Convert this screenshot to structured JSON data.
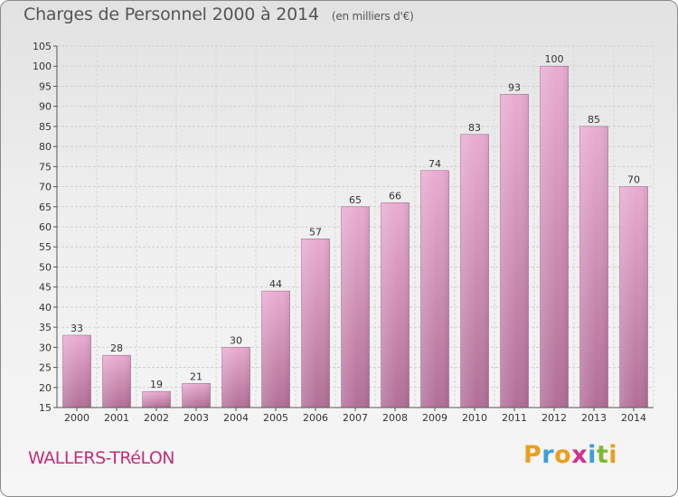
{
  "header": {
    "title": "Charges de Personnel 2000 à 2014",
    "unit": "(en milliers d'€)"
  },
  "footer": {
    "place": "WALLERS-TRéLON",
    "logo": [
      "P",
      "r",
      "o",
      "x",
      "i",
      "t",
      "i"
    ]
  },
  "colors": {
    "bar_top": "#e9acd0",
    "bar_bottom": "#b16f97",
    "place_text": "#c0307a"
  },
  "chart_data": {
    "type": "bar",
    "title": "Charges de Personnel 2000 à 2014",
    "subtitle": "(en milliers d'€)",
    "categories": [
      "2000",
      "2001",
      "2002",
      "2003",
      "2004",
      "2005",
      "2006",
      "2007",
      "2008",
      "2009",
      "2010",
      "2011",
      "2012",
      "2013",
      "2014"
    ],
    "values": [
      33,
      28,
      19,
      21,
      30,
      44,
      57,
      65,
      66,
      74,
      83,
      93,
      100,
      85,
      70
    ],
    "ylim": [
      15,
      105
    ],
    "yticks": [
      15,
      20,
      25,
      30,
      35,
      40,
      45,
      50,
      55,
      60,
      65,
      70,
      75,
      80,
      85,
      90,
      95,
      100,
      105
    ],
    "grid": true,
    "data_labels": true
  }
}
